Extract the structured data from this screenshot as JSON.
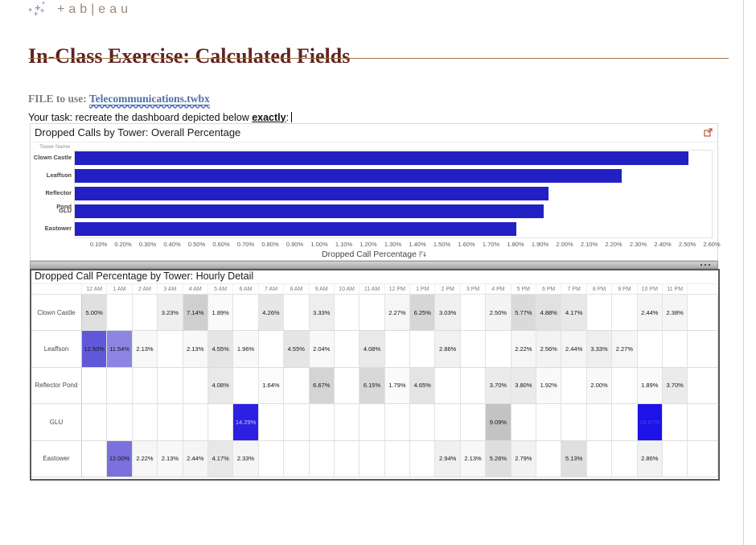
{
  "logo": {
    "wordmark": "+ab|eau"
  },
  "header": {
    "title": "In-Class Exercise: Calculated Fields",
    "accent_color": "#5e2320",
    "rule_color": "#a5714b"
  },
  "intro": {
    "file_label": "FILE to use:",
    "file_link": "Telecommunications.twbx",
    "task_prefix": "Your task: recreate the dashboard depicted below ",
    "task_emphasis": "exactly",
    "task_suffix": ":"
  },
  "chart1": {
    "title": "Dropped Calls by Tower: Overall Percentage",
    "row_header_label": "Tower Name",
    "axis_label": "Dropped Call Percentage",
    "bar_color": "#2320c3",
    "categories": [
      "Clown Castle",
      "Leaffson",
      "Reflector Pond",
      "GLU",
      "Eastower"
    ],
    "values_pct": [
      2.5,
      2.23,
      1.93,
      1.91,
      1.8
    ],
    "axis_ticks": [
      "0.10%",
      "0.20%",
      "0.30%",
      "0.40%",
      "0.50%",
      "0.60%",
      "0.70%",
      "0.80%",
      "0.90%",
      "1.00%",
      "1.10%",
      "1.20%",
      "1.30%",
      "1.40%",
      "1.50%",
      "1.60%",
      "1.70%",
      "1.80%",
      "1.90%",
      "2.00%",
      "2.10%",
      "2.20%",
      "2.30%",
      "2.40%",
      "2.50%",
      "2.60%"
    ]
  },
  "chart2": {
    "title": "Dropped Call Percentage by Tower: Hourly Detail",
    "hours": [
      "12 AM",
      "1 AM",
      "2 AM",
      "3 AM",
      "4 AM",
      "5 AM",
      "6 AM",
      "7 AM",
      "8 AM",
      "9 AM",
      "10 AM",
      "11 AM",
      "12 PM",
      "1 PM",
      "2 PM",
      "3 PM",
      "4 PM",
      "5 PM",
      "6 PM",
      "7 PM",
      "8 PM",
      "9 PM",
      "10 PM",
      "11 PM"
    ],
    "rows": [
      {
        "name": "Clown Castle",
        "cells": [
          {
            "v": "5.00%",
            "bg": "#e0e0e0"
          },
          null,
          null,
          {
            "v": "3.23%",
            "bg": "#efefef"
          },
          {
            "v": "7.14%",
            "bg": "#cfcfcf"
          },
          {
            "v": "1.89%",
            "bg": "#fafafa"
          },
          null,
          {
            "v": "4.26%",
            "bg": "#e7e7e7"
          },
          null,
          {
            "v": "3.33%",
            "bg": "#eeeeee"
          },
          null,
          null,
          {
            "v": "2.27%",
            "bg": "#f6f6f6"
          },
          {
            "v": "6.25%",
            "bg": "#d6d6d6"
          },
          {
            "v": "3.03%",
            "bg": "#f0f0f0"
          },
          null,
          {
            "v": "2.50%",
            "bg": "#f4f4f4"
          },
          {
            "v": "5.77%",
            "bg": "#dadada"
          },
          {
            "v": "4.88%",
            "bg": "#e1e1e1"
          },
          {
            "v": "4.17%",
            "bg": "#e8e8e8"
          },
          null,
          null,
          {
            "v": "2.44%",
            "bg": "#f5f5f5"
          },
          {
            "v": "2.38%",
            "bg": "#f5f5f5"
          }
        ]
      },
      {
        "name": "Leaffson",
        "cells": [
          {
            "v": "12.50%",
            "bg": "#6158d9"
          },
          {
            "v": "11.54%",
            "bg": "#8d85e2"
          },
          {
            "v": "2.13%",
            "bg": "#f8f8f8"
          },
          null,
          {
            "v": "2.13%",
            "bg": "#f8f8f8"
          },
          {
            "v": "4.55%",
            "bg": "#e5e5e5"
          },
          {
            "v": "1.96%",
            "bg": "#f9f9f9"
          },
          null,
          {
            "v": "4.55%",
            "bg": "#e5e5e5"
          },
          {
            "v": "2.04%",
            "bg": "#f8f8f8"
          },
          null,
          {
            "v": "4.08%",
            "bg": "#e9e9e9"
          },
          null,
          null,
          {
            "v": "2.86%",
            "bg": "#f1f1f1"
          },
          null,
          null,
          {
            "v": "2.22%",
            "bg": "#f6f6f6"
          },
          {
            "v": "2.56%",
            "bg": "#f3f3f3"
          },
          {
            "v": "2.44%",
            "bg": "#f5f5f5"
          },
          {
            "v": "3.33%",
            "bg": "#eeeeee"
          },
          {
            "v": "2.27%",
            "bg": "#f6f6f6"
          },
          null,
          null
        ]
      },
      {
        "name": "Reflector Pond",
        "cells": [
          null,
          null,
          null,
          null,
          null,
          {
            "v": "4.08%",
            "bg": "#e9e9e9"
          },
          null,
          {
            "v": "1.64%",
            "bg": "#fbfbfb"
          },
          null,
          {
            "v": "6.67%",
            "bg": "#d4d4d4"
          },
          null,
          {
            "v": "6.15%",
            "bg": "#d8d8d8"
          },
          {
            "v": "1.79%",
            "bg": "#fafafa"
          },
          {
            "v": "4.65%",
            "bg": "#e4e4e4"
          },
          null,
          null,
          {
            "v": "3.70%",
            "bg": "#ebebeb"
          },
          {
            "v": "3.80%",
            "bg": "#eaeaea"
          },
          {
            "v": "1.92%",
            "bg": "#f9f9f9"
          },
          null,
          {
            "v": "2.00%",
            "bg": "#f8f8f8"
          },
          null,
          {
            "v": "1.89%",
            "bg": "#fafafa"
          },
          {
            "v": "3.70%",
            "bg": "#ebebeb"
          }
        ]
      },
      {
        "name": "GLU",
        "cells": [
          null,
          null,
          null,
          null,
          null,
          null,
          {
            "v": "14.29%",
            "bg": "#2d20e2",
            "fg": "#c9c9ef"
          },
          null,
          null,
          null,
          null,
          null,
          null,
          null,
          null,
          null,
          {
            "v": "9.09%",
            "bg": "#c3c3c3"
          },
          null,
          null,
          null,
          null,
          null,
          {
            "v": "16.67%",
            "bg": "#1d12e8",
            "fg": "#4d43ea"
          },
          null
        ]
      },
      {
        "name": "Eastower",
        "cells": [
          null,
          {
            "v": "12.00%",
            "bg": "#7b71de"
          },
          {
            "v": "2.22%",
            "bg": "#f6f6f6"
          },
          {
            "v": "2.13%",
            "bg": "#f8f8f8"
          },
          {
            "v": "2.44%",
            "bg": "#f5f5f5"
          },
          {
            "v": "4.17%",
            "bg": "#e8e8e8"
          },
          {
            "v": "2.33%",
            "bg": "#f5f5f5"
          },
          null,
          null,
          null,
          null,
          null,
          null,
          null,
          {
            "v": "2.94%",
            "bg": "#f0f0f0"
          },
          {
            "v": "2.13%",
            "bg": "#f8f8f8"
          },
          {
            "v": "5.26%",
            "bg": "#dedede"
          },
          {
            "v": "2.79%",
            "bg": "#f2f2f2"
          },
          null,
          {
            "v": "5.13%",
            "bg": "#dfdfdf"
          },
          null,
          null,
          {
            "v": "2.86%",
            "bg": "#f1f1f1"
          },
          null
        ]
      }
    ]
  },
  "chart_data": [
    {
      "type": "bar",
      "orientation": "horizontal",
      "title": "Dropped Calls by Tower: Overall Percentage",
      "categories": [
        "Clown Castle",
        "Leaffson",
        "Reflector Pond",
        "GLU",
        "Eastower"
      ],
      "values": [
        2.5,
        2.23,
        1.93,
        1.91,
        1.8
      ],
      "unit": "%",
      "xlabel": "Dropped Call Percentage",
      "ylabel": "Tower Name",
      "xlim": [
        0,
        2.65
      ],
      "x_tick_step": 0.1,
      "bar_color": "#2320c3",
      "grid": false,
      "legend": "none"
    },
    {
      "type": "heatmap",
      "title": "Dropped Call Percentage by Tower: Hourly Detail",
      "x": [
        "12 AM",
        "1 AM",
        "2 AM",
        "3 AM",
        "4 AM",
        "5 AM",
        "6 AM",
        "7 AM",
        "8 AM",
        "9 AM",
        "10 AM",
        "11 AM",
        "12 PM",
        "1 PM",
        "2 PM",
        "3 PM",
        "4 PM",
        "5 PM",
        "6 PM",
        "7 PM",
        "8 PM",
        "9 PM",
        "10 PM",
        "11 PM"
      ],
      "y": [
        "Clown Castle",
        "Leaffson",
        "Reflector Pond",
        "GLU",
        "Eastower"
      ],
      "unit": "%",
      "values": [
        [
          5.0,
          null,
          null,
          3.23,
          7.14,
          1.89,
          null,
          4.26,
          null,
          3.33,
          null,
          null,
          2.27,
          6.25,
          3.03,
          null,
          2.5,
          5.77,
          4.88,
          4.17,
          null,
          null,
          2.44,
          2.38
        ],
        [
          12.5,
          11.54,
          2.13,
          null,
          2.13,
          4.55,
          1.96,
          null,
          4.55,
          2.04,
          null,
          4.08,
          null,
          null,
          2.86,
          null,
          null,
          2.22,
          2.56,
          2.44,
          3.33,
          2.27,
          null,
          null
        ],
        [
          null,
          null,
          null,
          null,
          null,
          4.08,
          null,
          1.64,
          null,
          6.67,
          null,
          6.15,
          1.79,
          4.65,
          null,
          null,
          3.7,
          3.8,
          1.92,
          null,
          2.0,
          null,
          1.89,
          3.7
        ],
        [
          null,
          null,
          null,
          null,
          null,
          null,
          14.29,
          null,
          null,
          null,
          null,
          null,
          null,
          null,
          null,
          null,
          9.09,
          null,
          null,
          null,
          null,
          null,
          16.67,
          null
        ],
        [
          null,
          12.0,
          2.22,
          2.13,
          2.44,
          4.17,
          2.33,
          null,
          null,
          null,
          null,
          null,
          null,
          null,
          2.94,
          2.13,
          5.26,
          2.79,
          null,
          5.13,
          null,
          null,
          2.86,
          null
        ]
      ]
    }
  ]
}
